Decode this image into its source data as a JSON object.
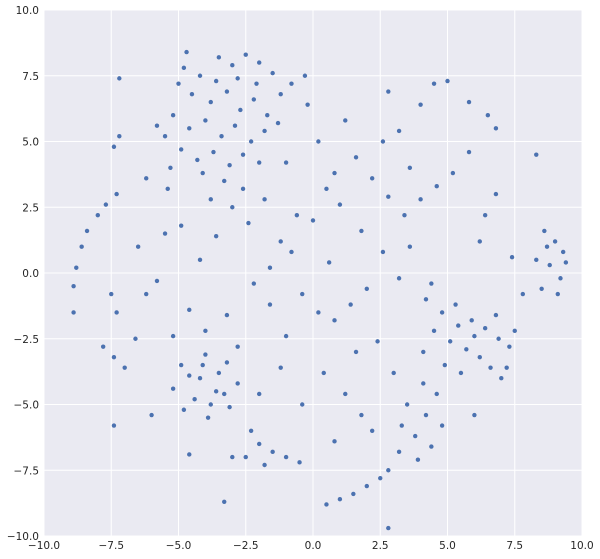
{
  "chart_data": {
    "type": "scatter",
    "title": "",
    "xlabel": "",
    "ylabel": "",
    "xlim": [
      -10,
      10
    ],
    "ylim": [
      -10,
      10
    ],
    "grid": true,
    "background_color": "#EAEAF2",
    "grid_color": "#FFFFFF",
    "point_color": "#4C72B0",
    "x_ticks": [
      "−10.0",
      "−7.5",
      "−5.0",
      "−2.5",
      "0.0",
      "2.5",
      "5.0",
      "7.5",
      "10.0"
    ],
    "y_ticks": [
      "−10.0",
      "−7.5",
      "−5.0",
      "−2.5",
      "0.0",
      "2.5",
      "5.0",
      "7.5",
      "10.0"
    ],
    "x_tick_values": [
      -10,
      -7.5,
      -5,
      -2.5,
      0,
      2.5,
      5,
      7.5,
      10
    ],
    "y_tick_values": [
      -10,
      -7.5,
      -5,
      -2.5,
      0,
      2.5,
      5,
      7.5,
      10
    ],
    "points": [
      [
        -4.8,
        7.8
      ],
      [
        -4.2,
        7.5
      ],
      [
        -3.5,
        8.2
      ],
      [
        -3,
        7.9
      ],
      [
        -2.5,
        8.3
      ],
      [
        -2,
        8.0
      ],
      [
        -1.5,
        7.6
      ],
      [
        -4.5,
        6.8
      ],
      [
        -3.8,
        6.5
      ],
      [
        -3.2,
        6.9
      ],
      [
        -2.7,
        6.2
      ],
      [
        -2.2,
        6.6
      ],
      [
        -1.7,
        6.0
      ],
      [
        -1.2,
        6.8
      ],
      [
        -5.2,
        6.0
      ],
      [
        -4.6,
        5.5
      ],
      [
        -4,
        5.8
      ],
      [
        -3.4,
        5.2
      ],
      [
        -2.9,
        5.6
      ],
      [
        -2.3,
        5.0
      ],
      [
        -1.8,
        5.4
      ],
      [
        -5.5,
        5.2
      ],
      [
        -4.9,
        4.7
      ],
      [
        -4.3,
        4.3
      ],
      [
        -3.7,
        4.6
      ],
      [
        -3.1,
        4.1
      ],
      [
        -2.6,
        4.5
      ],
      [
        -2,
        4.2
      ],
      [
        -5.8,
        5.6
      ],
      [
        -5.0,
        7.2
      ],
      [
        -3.6,
        7.3
      ],
      [
        -2.8,
        7.4
      ],
      [
        -2.1,
        7.2
      ],
      [
        -1.3,
        5.7
      ],
      [
        -0.8,
        7.2
      ],
      [
        -0.3,
        7.5
      ],
      [
        -4.1,
        3.8
      ],
      [
        -3.3,
        3.5
      ],
      [
        -5.3,
        4.0
      ],
      [
        -4.7,
        8.4
      ],
      [
        -4,
        -3.1
      ],
      [
        -3.2,
        -3.4
      ],
      [
        -2.8,
        -4.2
      ],
      [
        -3.1,
        -5.1
      ],
      [
        -3.9,
        -5.5
      ],
      [
        -4.8,
        -5.2
      ],
      [
        -5.2,
        -4.4
      ],
      [
        -4.9,
        -3.5
      ],
      [
        -4.2,
        -4
      ],
      [
        -3.6,
        -4.5
      ],
      [
        -4.4,
        -4.8
      ],
      [
        -3.5,
        -3.8
      ],
      [
        -4.6,
        -3.9
      ],
      [
        -3.8,
        -5.0
      ],
      [
        -3.3,
        -4.6
      ],
      [
        -4.1,
        -3.5
      ],
      [
        4.2,
        -1.0
      ],
      [
        4.8,
        -1.5
      ],
      [
        5.3,
        -1.2
      ],
      [
        5.9,
        -1.8
      ],
      [
        6.4,
        -2.1
      ],
      [
        6.9,
        -2.5
      ],
      [
        4.5,
        -2.2
      ],
      [
        5.1,
        -2.6
      ],
      [
        5.7,
        -2.9
      ],
      [
        6.2,
        -3.2
      ],
      [
        4.9,
        -3.5
      ],
      [
        5.5,
        -3.8
      ],
      [
        6.8,
        -1.6
      ],
      [
        7.3,
        -2.8
      ],
      [
        4.4,
        -0.4
      ],
      [
        6.0,
        -2.4
      ],
      [
        5.4,
        -2.0
      ],
      [
        4.1,
        -3.0
      ],
      [
        6.6,
        -3.6
      ],
      [
        7.5,
        -2.2
      ],
      [
        8.6,
        1.6
      ],
      [
        9.0,
        1.2
      ],
      [
        9.3,
        0.8
      ],
      [
        8.8,
        0.3
      ],
      [
        9.2,
        -0.2
      ],
      [
        8.5,
        -0.6
      ],
      [
        9.4,
        0.4
      ],
      [
        8.7,
        1.0
      ],
      [
        9.1,
        -0.8
      ],
      [
        8.3,
        0.5
      ],
      [
        3.5,
        -5.0
      ],
      [
        4.2,
        -5.4
      ],
      [
        4.8,
        -5.8
      ],
      [
        3.8,
        -6.2
      ],
      [
        4.4,
        -6.6
      ],
      [
        3.2,
        -6.8
      ],
      [
        3.9,
        -7.1
      ],
      [
        2.8,
        -7.5
      ],
      [
        4.6,
        -4.6
      ],
      [
        3.3,
        -5.8
      ],
      [
        4.1,
        -4.2
      ],
      [
        0.5,
        -8.8
      ],
      [
        1.0,
        -8.6
      ],
      [
        1.5,
        -8.4
      ],
      [
        2.0,
        -8.1
      ],
      [
        2.5,
        -7.8
      ],
      [
        -2.3,
        -6.0
      ],
      [
        -2.0,
        -6.5
      ],
      [
        -1.5,
        -6.8
      ],
      [
        -1.0,
        -7.0
      ],
      [
        -0.5,
        -7.2
      ],
      [
        -2.5,
        -7.0
      ],
      [
        -3,
        -7.0
      ],
      [
        -1.8,
        -7.3
      ],
      [
        -8.9,
        -1.5
      ],
      [
        -8.9,
        -0.5
      ],
      [
        -8.8,
        0.2
      ],
      [
        -8.6,
        1.0
      ],
      [
        -8.4,
        1.6
      ],
      [
        -8.0,
        2.2
      ],
      [
        -7.7,
        2.6
      ],
      [
        -7.3,
        3.0
      ],
      [
        -7.4,
        4.8
      ],
      [
        -7.2,
        5.2
      ],
      [
        -7.8,
        -2.8
      ],
      [
        -7.4,
        -3.2
      ],
      [
        -7.0,
        -3.6
      ],
      [
        -7.3,
        -1.5
      ],
      [
        -7.5,
        -0.8
      ],
      [
        -6.6,
        -2.5
      ],
      [
        -7.4,
        -5.8
      ],
      [
        -5.8,
        -0.3
      ],
      [
        -5.5,
        1.5
      ],
      [
        -4.9,
        1.8
      ],
      [
        -4.2,
        0.5
      ],
      [
        -3.6,
        1.4
      ],
      [
        -3,
        2.5
      ],
      [
        -2.4,
        1.9
      ],
      [
        -1.8,
        2.8
      ],
      [
        -1.2,
        1.2
      ],
      [
        -0.6,
        2.2
      ],
      [
        0,
        2.0
      ],
      [
        0.5,
        3.2
      ],
      [
        1,
        2.6
      ],
      [
        1.6,
        4.4
      ],
      [
        2.2,
        3.6
      ],
      [
        2.8,
        2.9
      ],
      [
        3.4,
        2.2
      ],
      [
        4,
        2.8
      ],
      [
        4.6,
        3.3
      ],
      [
        5.2,
        3.8
      ],
      [
        5.8,
        4.6
      ],
      [
        6.4,
        2.2
      ],
      [
        6.8,
        3
      ],
      [
        6.2,
        1.2
      ],
      [
        7.4,
        0.6
      ],
      [
        7.8,
        -0.8
      ],
      [
        -2.2,
        -0.4
      ],
      [
        -1.6,
        -1.2
      ],
      [
        -1,
        -2.4
      ],
      [
        -0.4,
        -0.8
      ],
      [
        0.2,
        -1.5
      ],
      [
        0.8,
        -1.8
      ],
      [
        1.4,
        -1.2
      ],
      [
        2,
        -0.6
      ],
      [
        2.6,
        0.8
      ],
      [
        3.2,
        -0.2
      ],
      [
        -3.2,
        -1.6
      ],
      [
        -4.6,
        -1.4
      ],
      [
        -5.2,
        -2.4
      ],
      [
        -2.8,
        -2.8
      ],
      [
        -1.2,
        -3.6
      ],
      [
        0.4,
        -3.8
      ],
      [
        1.2,
        -4.6
      ],
      [
        1.8,
        -5.4
      ],
      [
        -0.4,
        -5.0
      ],
      [
        0.8,
        -6.4
      ],
      [
        2.2,
        -6.0
      ],
      [
        -0.8,
        0.8
      ],
      [
        0.6,
        0.4
      ],
      [
        1.8,
        1.6
      ],
      [
        3.6,
        1.0
      ],
      [
        -3.8,
        2.8
      ],
      [
        -5.4,
        3.2
      ],
      [
        -6.2,
        3.6
      ],
      [
        -1,
        4.2
      ],
      [
        0.2,
        5
      ],
      [
        1.2,
        5.8
      ],
      [
        -0.2,
        6.4
      ],
      [
        2.8,
        6.9
      ],
      [
        3.2,
        5.4
      ],
      [
        4,
        6.4
      ],
      [
        4.5,
        7.2
      ],
      [
        5,
        7.3
      ],
      [
        5.8,
        6.5
      ],
      [
        6.5,
        6.0
      ],
      [
        6.8,
        5.5
      ],
      [
        2.6,
        5.0
      ],
      [
        3.6,
        4.0
      ],
      [
        1.6,
        -3.0
      ],
      [
        2.4,
        -2.6
      ],
      [
        3.0,
        -3.8
      ],
      [
        -6.2,
        -0.8
      ],
      [
        -6.5,
        1.0
      ],
      [
        -2.6,
        3.2
      ],
      [
        0.8,
        3.8
      ],
      [
        -1.6,
        0.2
      ],
      [
        -4.0,
        -2.2
      ],
      [
        -2.0,
        -4.6
      ],
      [
        2.8,
        -9.7
      ],
      [
        -3.3,
        -8.7
      ],
      [
        8.3,
        4.5
      ],
      [
        -7.2,
        7.4
      ],
      [
        -4.6,
        -6.9
      ],
      [
        6.0,
        -5.4
      ],
      [
        7.0,
        -4.0
      ],
      [
        7.2,
        -3.6
      ],
      [
        -6.0,
        -5.4
      ]
    ]
  }
}
